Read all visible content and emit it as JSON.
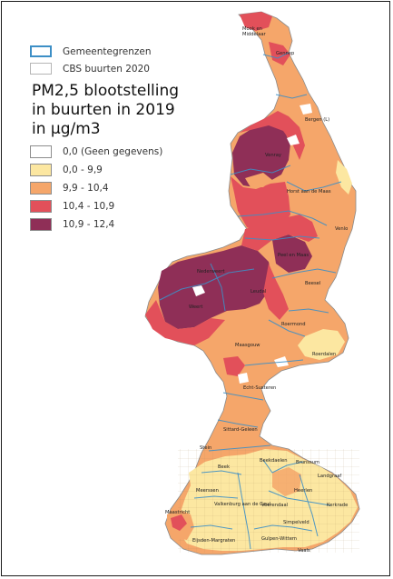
{
  "legend": {
    "layers": [
      {
        "label": "Gemeentegrenzen"
      },
      {
        "label": "CBS buurten 2020"
      }
    ],
    "title_lines": [
      "PM2,5 blootstelling",
      "in buurten in 2019",
      "in µg/m3"
    ],
    "classes": [
      {
        "label": "0,0 (Geen gegevens)",
        "color": "#ffffff"
      },
      {
        "label": "0,0 - 9,9",
        "color": "#fce7a1"
      },
      {
        "label": "9,9 - 10,4",
        "color": "#f5a66a"
      },
      {
        "label": "10,4 - 10,9",
        "color": "#e2505a"
      },
      {
        "label": "10,9 - 12,4",
        "color": "#8f2f57"
      }
    ],
    "boundary_color": "#3d8fc6"
  },
  "places": [
    {
      "name": "Mook en Middelaar"
    },
    {
      "name": "Gennep"
    },
    {
      "name": "Bergen (L)"
    },
    {
      "name": "Venray"
    },
    {
      "name": "Horst aan de Maas"
    },
    {
      "name": "Venlo"
    },
    {
      "name": "Peel en Maas"
    },
    {
      "name": "Nederweert"
    },
    {
      "name": "Beesel"
    },
    {
      "name": "Leudal"
    },
    {
      "name": "Weert"
    },
    {
      "name": "Roermond"
    },
    {
      "name": "Maasgouw"
    },
    {
      "name": "Roerdalen"
    },
    {
      "name": "Echt-Susteren"
    },
    {
      "name": "Sittard-Geleen"
    },
    {
      "name": "Stein"
    },
    {
      "name": "Beek"
    },
    {
      "name": "Beekdaelen"
    },
    {
      "name": "Brunssum"
    },
    {
      "name": "Landgraaf"
    },
    {
      "name": "Heerlen"
    },
    {
      "name": "Meerssen"
    },
    {
      "name": "Voerendaal"
    },
    {
      "name": "Kerkrade"
    },
    {
      "name": "Valkenburg aan de Geul"
    },
    {
      "name": "Simpelveld"
    },
    {
      "name": "Maastricht"
    },
    {
      "name": "Gulpen-Wittem"
    },
    {
      "name": "Eijsden-Margraten"
    },
    {
      "name": "Vaals"
    }
  ]
}
